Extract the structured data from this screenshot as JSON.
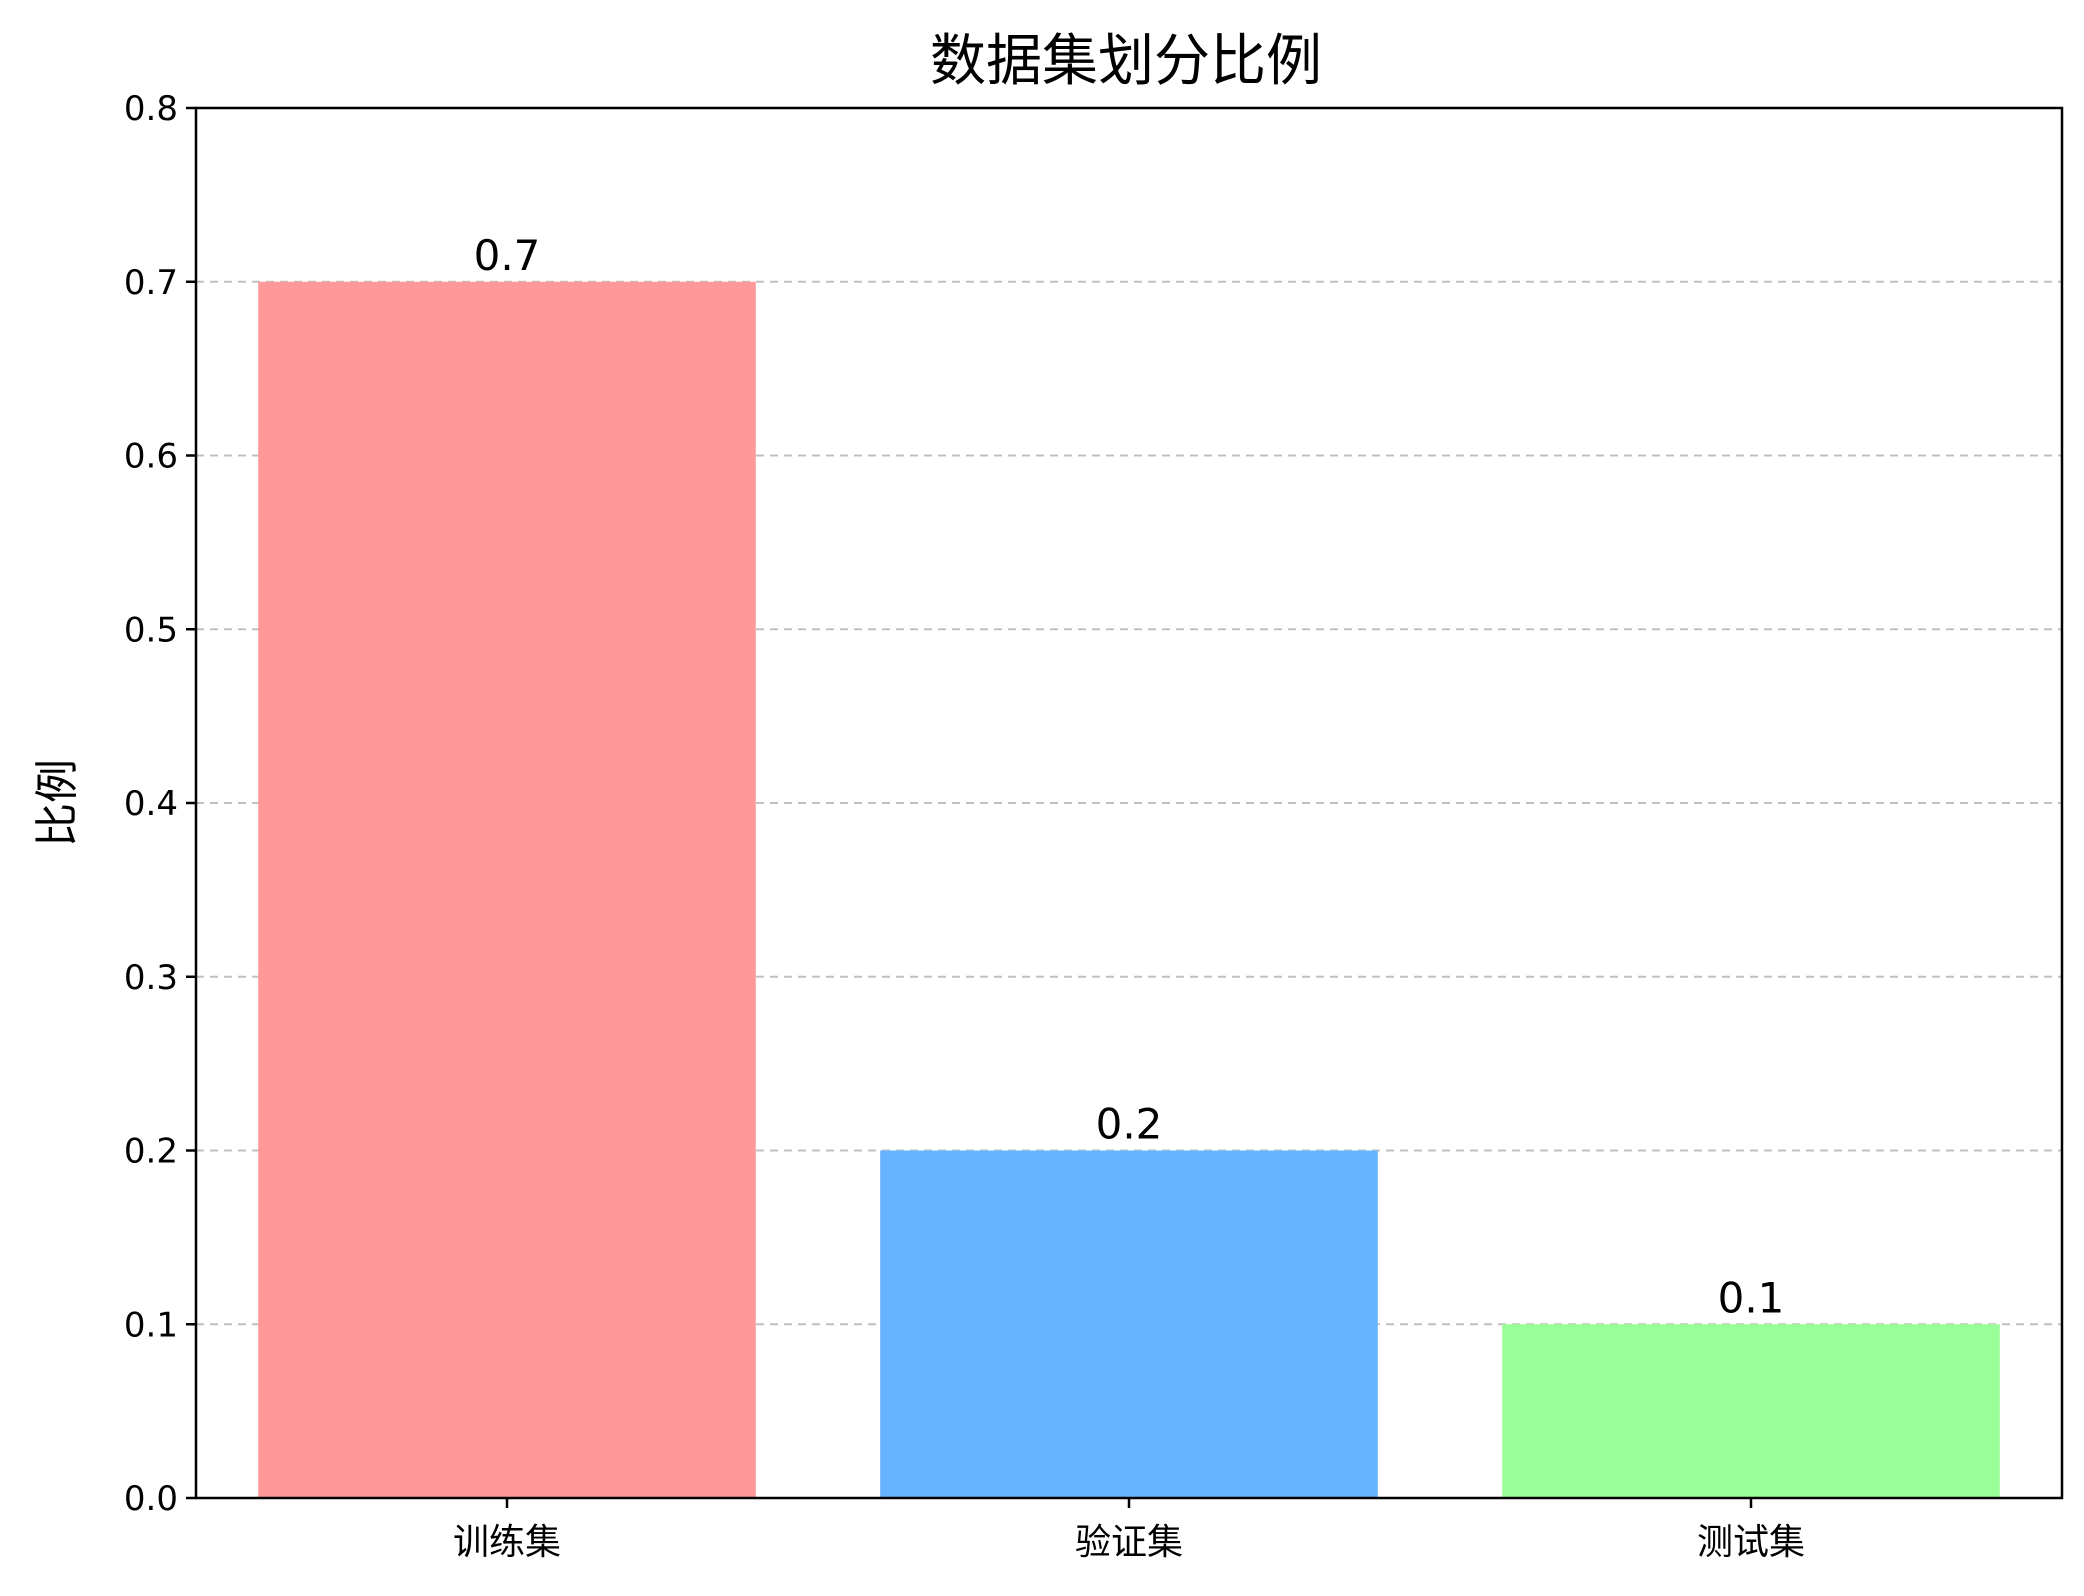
{
  "chart_data": {
    "type": "bar",
    "title": "数据集划分比例",
    "xlabel": "",
    "ylabel": "比例",
    "categories": [
      "训练集",
      "验证集",
      "测试集"
    ],
    "values": [
      0.7,
      0.2,
      0.1
    ],
    "data_labels": [
      "0.7",
      "0.2",
      "0.1"
    ],
    "colors": [
      "#ff9999",
      "#66b3ff",
      "#99ff99"
    ],
    "ylim": [
      0,
      0.8
    ],
    "yticks": [
      0.0,
      0.1,
      0.2,
      0.3,
      0.4,
      0.5,
      0.6,
      0.7,
      0.8
    ],
    "ytick_labels": [
      "0.0",
      "0.1",
      "0.2",
      "0.3",
      "0.4",
      "0.5",
      "0.6",
      "0.7",
      "0.8"
    ],
    "grid": {
      "axis": "y",
      "style": "dashed",
      "color": "#c0c0c0"
    }
  }
}
